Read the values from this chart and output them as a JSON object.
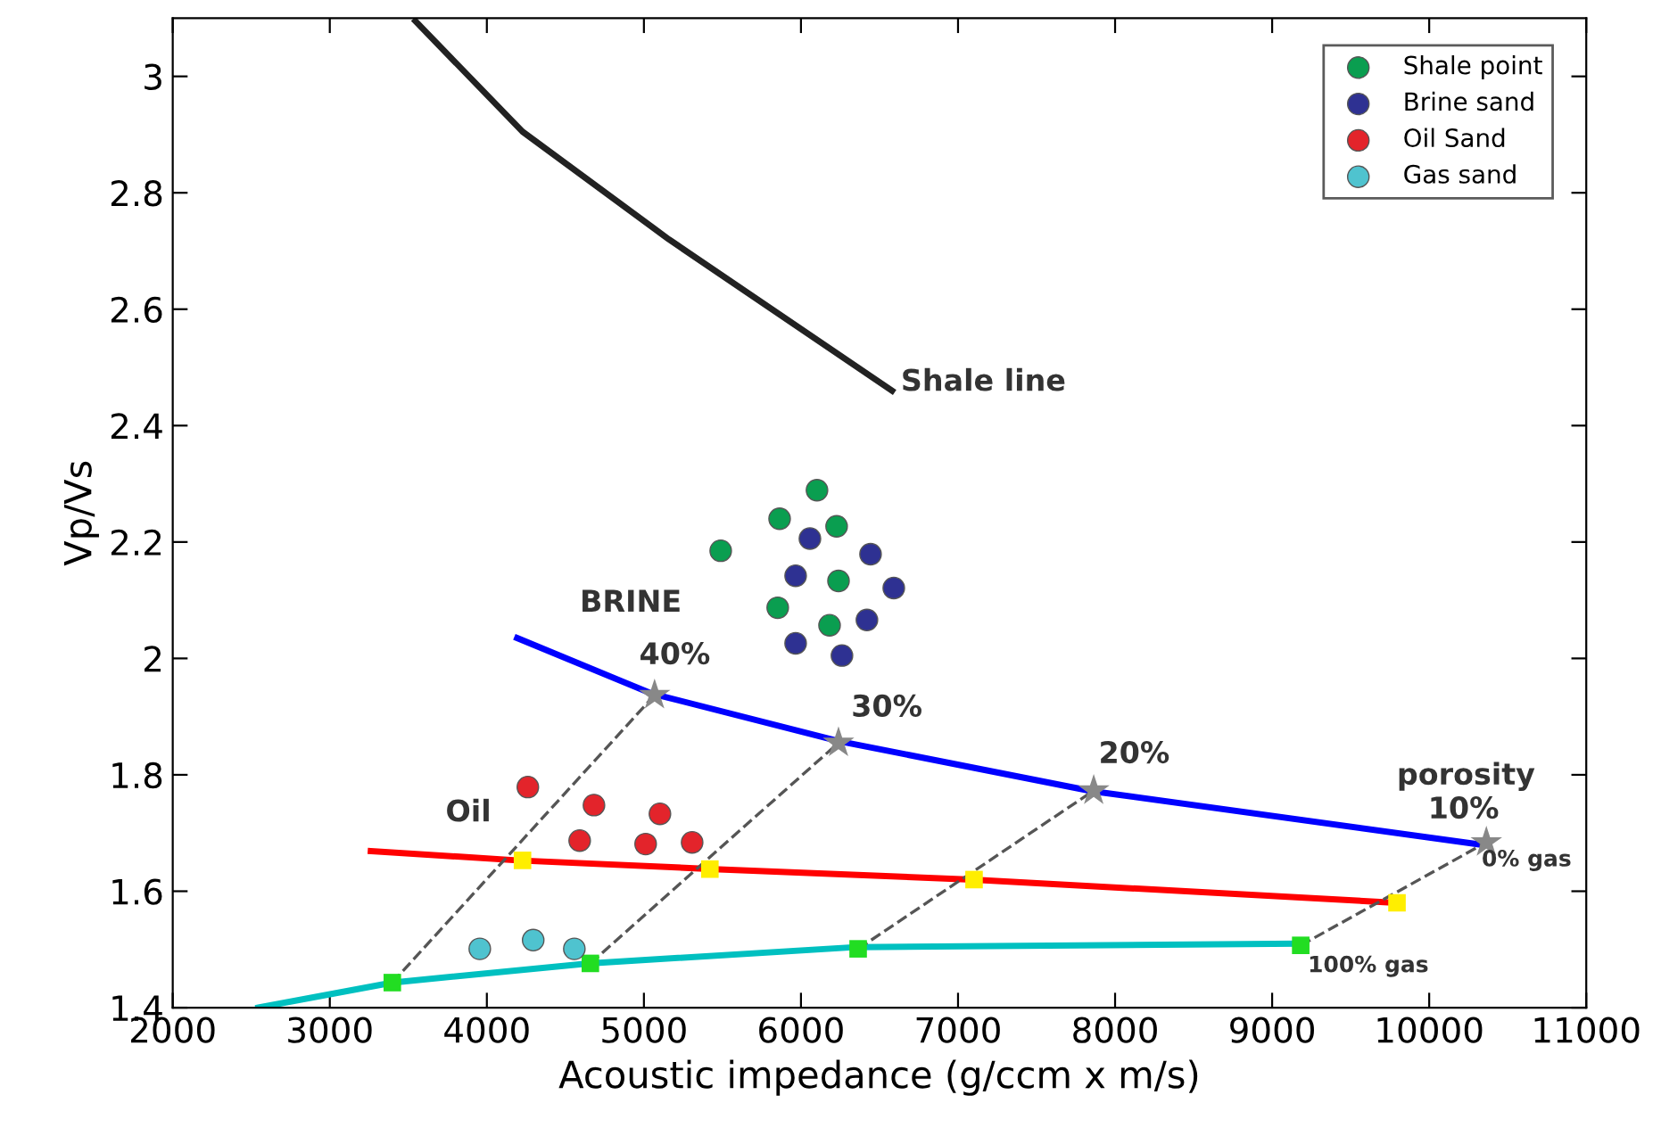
{
  "chart_data": {
    "type": "scatter",
    "xlabel": "Acoustic impedance (g/ccm x m/s)",
    "ylabel": "Vp/Vs",
    "xlim": [
      2000,
      11000
    ],
    "ylim": [
      1.4,
      3.1
    ],
    "xticks": [
      2000,
      3000,
      4000,
      5000,
      6000,
      7000,
      8000,
      9000,
      10000,
      11000
    ],
    "yticks": [
      1.4,
      1.6,
      1.8,
      2,
      2.2,
      2.4,
      2.6,
      2.8,
      3
    ],
    "grid": false,
    "legend": "top right",
    "marker": "circle",
    "series": [
      {
        "type": "line",
        "color": "#222222",
        "line_style": "solid",
        "marker": "none",
        "x": [
          3545,
          4227,
          5159,
          6580
        ],
        "values": [
          3.095,
          2.905,
          2.72,
          2.46
        ]
      },
      {
        "type": "line",
        "color": "#0000ff",
        "line_style": "solid",
        "marker": "none",
        "x": [
          4193,
          5045,
          6239,
          7852,
          10330
        ],
        "values": [
          2.035,
          1.94,
          1.858,
          1.772,
          1.68
        ]
      },
      {
        "type": "line",
        "color": "#ff0000",
        "line_style": "solid",
        "marker": "none",
        "x": [
          3261,
          4193,
          5443,
          7091,
          9795
        ],
        "values": [
          1.669,
          1.653,
          1.638,
          1.62,
          1.58
        ]
      },
      {
        "type": "line",
        "color": "#00c0c0",
        "line_style": "solid",
        "marker": "none",
        "x": [
          2545,
          3398,
          4648,
          6352,
          9159
        ],
        "values": [
          1.4,
          1.443,
          1.476,
          1.504,
          1.51
        ]
      },
      {
        "type": "line",
        "color": "#555555",
        "line_style": "dashed",
        "marker": "none",
        "x": [
          3398,
          5068
        ],
        "values": [
          1.443,
          1.937
        ]
      },
      {
        "type": "line",
        "color": "#555555",
        "line_style": "dashed",
        "marker": "none",
        "x": [
          4659,
          6239
        ],
        "values": [
          1.476,
          1.855
        ]
      },
      {
        "type": "line",
        "color": "#555555",
        "line_style": "dashed",
        "marker": "none",
        "x": [
          6364,
          7864
        ],
        "values": [
          1.501,
          1.773
        ]
      },
      {
        "type": "line",
        "color": "#555555",
        "line_style": "dashed",
        "marker": "none",
        "x": [
          9182,
          10364
        ],
        "values": [
          1.507,
          1.684
        ]
      },
      {
        "type": "scatter",
        "color": "#888888",
        "marker": "star",
        "x": [
          5068,
          6239,
          7864,
          10364
        ],
        "values": [
          1.937,
          1.855,
          1.773,
          1.684
        ]
      },
      {
        "type": "scatter",
        "color": "#ffee00",
        "marker": "square",
        "x": [
          4227,
          5420,
          7102,
          9795
        ],
        "values": [
          1.653,
          1.638,
          1.62,
          1.58
        ]
      },
      {
        "type": "scatter",
        "color": "#22dd22",
        "marker": "square",
        "x": [
          3398,
          4659,
          6364,
          9182
        ],
        "values": [
          1.443,
          1.476,
          1.501,
          1.507
        ]
      },
      {
        "name": "Shale point",
        "color": "#0a9e50",
        "x": [
          5489,
          5864,
          6102,
          6227,
          6239,
          5852,
          6182
        ],
        "values": [
          2.185,
          2.24,
          2.289,
          2.227,
          2.133,
          2.087,
          2.057
        ]
      },
      {
        "name": "Brine sand",
        "color": "#2e3192",
        "x": [
          6057,
          6443,
          5966,
          6591,
          6420,
          5966,
          6261
        ],
        "values": [
          2.206,
          2.179,
          2.142,
          2.121,
          2.066,
          2.026,
          2.005
        ]
      },
      {
        "name": "Oil Sand",
        "color": "#e3242b",
        "x": [
          4261,
          4682,
          5102,
          4591,
          5011,
          5307
        ],
        "values": [
          1.779,
          1.748,
          1.733,
          1.687,
          1.681,
          1.684
        ]
      },
      {
        "name": "Gas sand",
        "color": "#4fc3cf",
        "x": [
          3955,
          4295,
          4557
        ],
        "values": [
          1.501,
          1.516,
          1.501
        ]
      }
    ],
    "annotations": [
      {
        "text": "Shale line",
        "x": 6636,
        "y": 2.46
      },
      "BRINE",
      "Oil",
      "40%",
      "30%",
      "20%",
      "porosity",
      "10%",
      "0% gas",
      "100% gas"
    ]
  }
}
